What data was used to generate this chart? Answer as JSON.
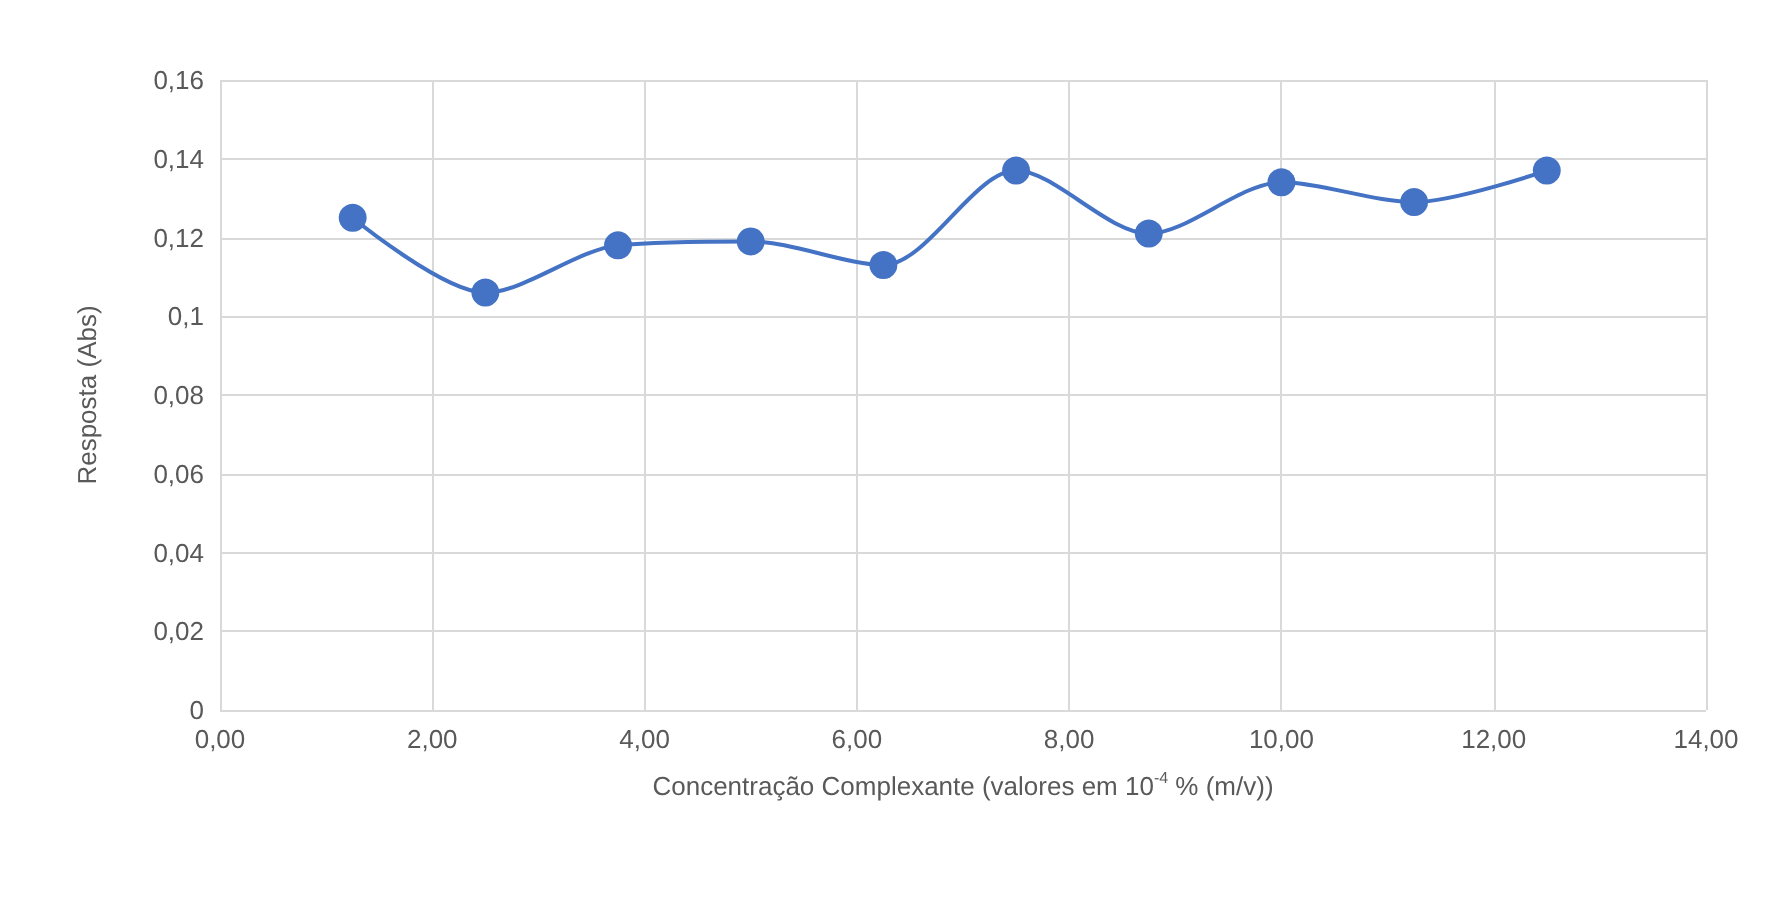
{
  "chart_data": {
    "type": "line",
    "xlabel": "Concentração Complexante (valores em 10$^{-4}$ % (m/v))",
    "ylabel": "Resposta (Abs)",
    "x": [
      1.25,
      2.5,
      3.75,
      5,
      6.25,
      7.5,
      8.75,
      10,
      11.25,
      12.5
    ],
    "series": [
      {
        "color": "#4472c4",
        "values": [
          0.125,
          0.106,
          0.118,
          0.119,
          0.113,
          0.137,
          0.121,
          0.134,
          0.129,
          0.137
        ]
      }
    ],
    "xlim": [
      0,
      14
    ],
    "xticks": [
      {
        "value": 0,
        "label": "0,00"
      },
      {
        "value": 2,
        "label": "2,00"
      },
      {
        "value": 4,
        "label": "4,00"
      },
      {
        "value": 6,
        "label": "6,00"
      },
      {
        "value": 8,
        "label": "8,00"
      },
      {
        "value": 10,
        "label": "10,00"
      },
      {
        "value": 12,
        "label": "12,00"
      },
      {
        "value": 14,
        "label": "14,00"
      }
    ],
    "ylim": [
      0,
      0.16
    ],
    "yticks": [
      {
        "value": 0,
        "label": "0"
      },
      {
        "value": 0.02,
        "label": "0,02"
      },
      {
        "value": 0.04,
        "label": "0,04"
      },
      {
        "value": 0.06,
        "label": "0,06"
      },
      {
        "value": 0.08,
        "label": "0,08"
      },
      {
        "value": 0.1,
        "label": "0,1"
      },
      {
        "value": 0.12,
        "label": "0,12"
      },
      {
        "value": 0.14,
        "label": "0,14"
      },
      {
        "value": 0.16,
        "label": "0,16"
      }
    ],
    "grid": true,
    "marker": "circle",
    "line_style": "solid"
  }
}
